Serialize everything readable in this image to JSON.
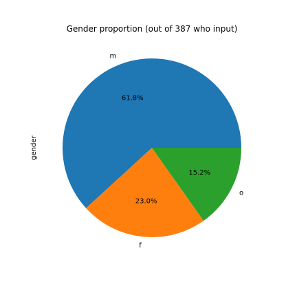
{
  "chart_data": {
    "type": "pie",
    "title": "Gender proportion (out of 387 who input)",
    "ylabel": "gender",
    "categories": [
      "m",
      "f",
      "o"
    ],
    "values": [
      61.8,
      23.0,
      15.2
    ],
    "percent_labels": [
      "61.8%",
      "23.0%",
      "15.2%"
    ],
    "colors": [
      "#1f77b4",
      "#ff7f0e",
      "#2ca02c"
    ],
    "start_angle_deg": 0,
    "direction": "counterclockwise"
  }
}
